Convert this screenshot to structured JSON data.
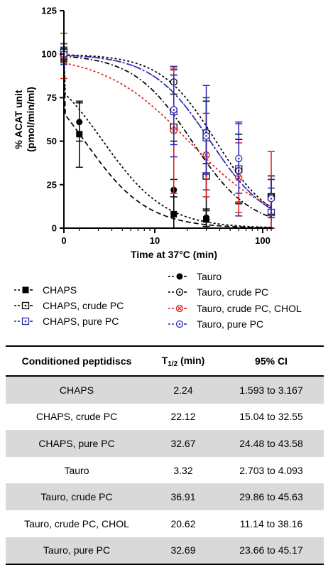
{
  "chart_data": {
    "type": "line",
    "ylabel_line1": "% ACAT unit",
    "ylabel_line2": "(pmol/min/ml)",
    "xlabel": "Time at 37°C (min)",
    "x_scale": "log (0 shown at left)",
    "yticks": [
      "0",
      "25",
      "50",
      "75",
      "100",
      "125"
    ],
    "xticks": [
      "0",
      "10",
      "100"
    ],
    "ylim": [
      0,
      125
    ],
    "series": [
      {
        "name": "CHAPS",
        "color": "#000000",
        "marker": "filled-square",
        "dash": "long",
        "points": [
          {
            "x": 0,
            "y": 99,
            "err": 4
          },
          {
            "x": 2,
            "y": 54,
            "err": 19
          },
          {
            "x": 15,
            "y": 8,
            "err": 10
          },
          {
            "x": 30,
            "y": 5,
            "err": 5
          }
        ],
        "t_half": 2.24,
        "slope": 1.5
      },
      {
        "name": "CHAPS, crude PC",
        "color": "#000000",
        "marker": "open-square-dot",
        "dash": "dashdot",
        "points": [
          {
            "x": 0,
            "y": 100,
            "err": 3
          },
          {
            "x": 15,
            "y": 58,
            "err": 30
          },
          {
            "x": 30,
            "y": 30,
            "err": 25
          },
          {
            "x": 60,
            "y": 34,
            "err": 20
          },
          {
            "x": 120,
            "y": 18,
            "err": 12
          }
        ],
        "t_half": 22.12,
        "slope": 1.6
      },
      {
        "name": "CHAPS, pure PC",
        "color": "#2a2ab4",
        "marker": "open-square-dot",
        "dash": "dashdot",
        "points": [
          {
            "x": 0,
            "y": 101,
            "err": 5
          },
          {
            "x": 15,
            "y": 67,
            "err": 26
          },
          {
            "x": 30,
            "y": 52,
            "err": 30
          },
          {
            "x": 60,
            "y": 34,
            "err": 27
          },
          {
            "x": 120,
            "y": 9,
            "err": 14
          }
        ],
        "t_half": 32.67,
        "slope": 1.6
      },
      {
        "name": "Tauro",
        "color": "#000000",
        "marker": "filled-circle",
        "dash": "short",
        "points": [
          {
            "x": 0,
            "y": 100,
            "err": 3
          },
          {
            "x": 2,
            "y": 61,
            "err": 11
          },
          {
            "x": 15,
            "y": 22,
            "err": 28
          },
          {
            "x": 30,
            "y": 6,
            "err": 5
          }
        ],
        "t_half": 3.32,
        "slope": 1.5
      },
      {
        "name": "Tauro, crude PC",
        "color": "#000000",
        "marker": "open-circle-dot",
        "dash": "short",
        "points": [
          {
            "x": 0,
            "y": 100,
            "err": 4
          },
          {
            "x": 15,
            "y": 84,
            "err": 7
          },
          {
            "x": 30,
            "y": 55,
            "err": 18
          },
          {
            "x": 60,
            "y": 33,
            "err": 18
          },
          {
            "x": 120,
            "y": 18,
            "err": 10
          }
        ],
        "t_half": 36.91,
        "slope": 1.7
      },
      {
        "name": "Tauro, crude PC, CHOL",
        "color": "#e02020",
        "marker": "open-circle-x",
        "dash": "short",
        "points": [
          {
            "x": 0,
            "y": 99,
            "err": 13
          },
          {
            "x": 15,
            "y": 56,
            "err": 36
          },
          {
            "x": 30,
            "y": 42,
            "err": 24
          },
          {
            "x": 60,
            "y": 29,
            "err": 20
          },
          {
            "x": 120,
            "y": 17,
            "err": 27
          }
        ],
        "t_half": 20.62,
        "slope": 1.1
      },
      {
        "name": "Tauro, pure PC",
        "color": "#2a2ab4",
        "marker": "open-circle-dot",
        "dash": "short",
        "points": [
          {
            "x": 0,
            "y": 100,
            "err": 6
          },
          {
            "x": 15,
            "y": 68,
            "err": 20
          },
          {
            "x": 30,
            "y": 53,
            "err": 22
          },
          {
            "x": 60,
            "y": 40,
            "err": 20
          },
          {
            "x": 120,
            "y": 17,
            "err": 11
          }
        ],
        "t_half": 32.69,
        "slope": 1.6
      }
    ]
  },
  "legend_left": [
    "CHAPS",
    "CHAPS, crude PC",
    "CHAPS, pure PC"
  ],
  "legend_right": [
    "Tauro",
    "Tauro, crude PC",
    "Tauro, crude PC, CHOL",
    "Tauro, pure PC"
  ],
  "table": {
    "header_col1": "Conditioned peptidiscs",
    "header_col2_main": "T",
    "header_col2_sub": "1/2",
    "header_col2_unit": "(min)",
    "header_col3": "95% CI",
    "rows": [
      {
        "name": "CHAPS",
        "t_half": "2.24",
        "ci": "1.593 to 3.167"
      },
      {
        "name": "CHAPS, crude PC",
        "t_half": "22.12",
        "ci": "15.04 to 32.55"
      },
      {
        "name": "CHAPS, pure PC",
        "t_half": "32.67",
        "ci": "24.48 to 43.58"
      },
      {
        "name": "Tauro",
        "t_half": "3.32",
        "ci": "2.703 to 4.093"
      },
      {
        "name": "Tauro, crude PC",
        "t_half": "36.91",
        "ci": "29.86 to 45.63"
      },
      {
        "name": "Tauro, crude PC, CHOL",
        "t_half": "20.62",
        "ci": "11.14 to 38.16"
      },
      {
        "name": "Tauro, pure PC",
        "t_half": "32.69",
        "ci": "23.66 to 45.17"
      }
    ]
  }
}
